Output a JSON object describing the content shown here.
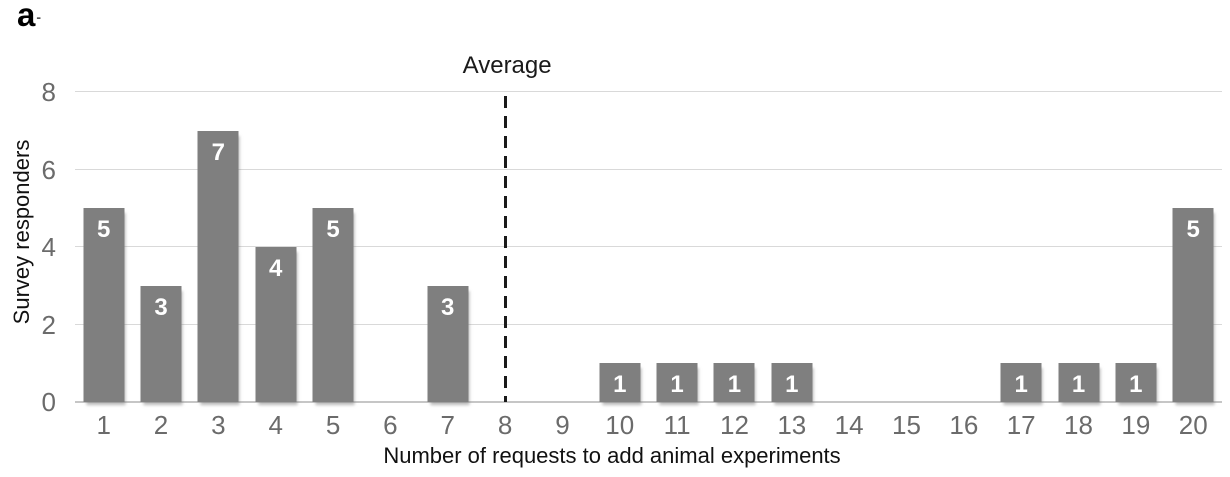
{
  "panel_label": "a",
  "panel_dash": "-",
  "chart_data": {
    "type": "bar",
    "title": "",
    "categories": [
      "1",
      "2",
      "3",
      "4",
      "5",
      "6",
      "7",
      "8",
      "9",
      "10",
      "11",
      "12",
      "13",
      "14",
      "15",
      "16",
      "17",
      "18",
      "19",
      "20"
    ],
    "values": [
      5,
      3,
      7,
      4,
      5,
      0,
      3,
      0,
      0,
      1,
      1,
      1,
      1,
      0,
      0,
      0,
      1,
      1,
      1,
      5
    ],
    "xlabel": "Number of requests to add animal experiments",
    "ylabel": "Survey responders",
    "yticks": [
      0,
      2,
      4,
      6,
      8
    ],
    "ylim": [
      0,
      8
    ],
    "grid": true,
    "legend": false,
    "annotation": {
      "label": "Average",
      "x": 8
    },
    "colors": {
      "bar": "#7f7f7f",
      "data_label": "#ffffff",
      "gridline": "#d9d9d9",
      "axis_line": "#c6c6c6",
      "tick_text": "#6b6b6b",
      "axis_title_text": "#111111",
      "average_line": "#1a1a1a"
    }
  }
}
